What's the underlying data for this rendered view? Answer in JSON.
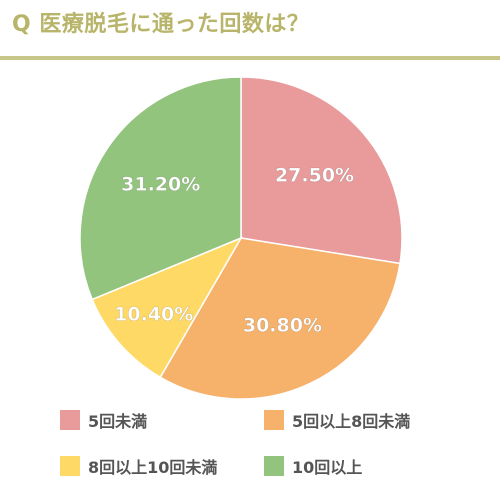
{
  "title": "Q 医療脱毛に通った回数は？",
  "colors": {
    "title": "#b8b56a",
    "rule": "#c9c68a"
  },
  "chart_data": {
    "type": "pie",
    "title": "Q 医療脱毛に通った回数は？",
    "legend_position": "bottom",
    "slices": [
      {
        "name": "5回未満",
        "value": 27.5,
        "label": "27.50%",
        "color": "#e99a9b"
      },
      {
        "name": "5回以上8回未満",
        "value": 30.8,
        "label": "30.80%",
        "color": "#f6b26b"
      },
      {
        "name": "8回以上10回未満",
        "value": 10.4,
        "label": "10.40%",
        "color": "#ffd966"
      },
      {
        "name": "10回以上",
        "value": 31.2,
        "label": "31.20%",
        "color": "#93c47d"
      }
    ]
  }
}
